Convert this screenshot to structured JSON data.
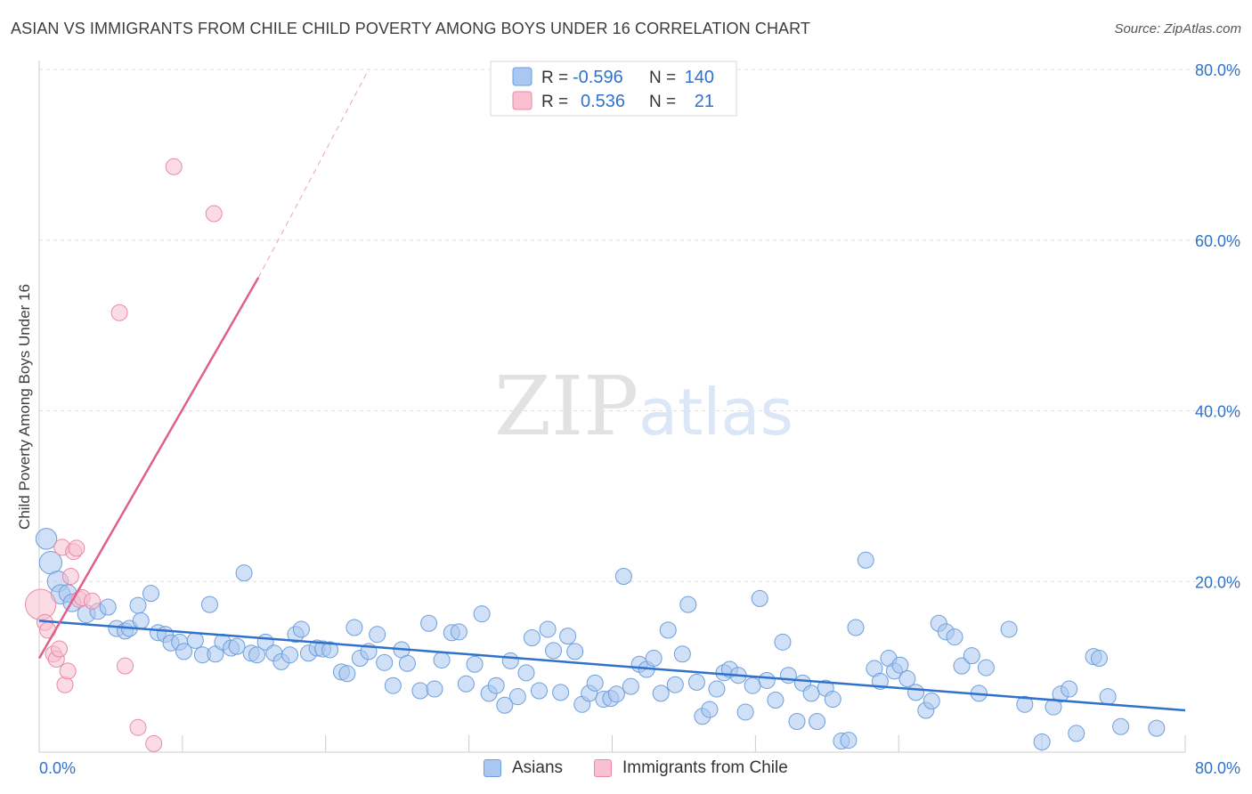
{
  "title": "ASIAN VS IMMIGRANTS FROM CHILE CHILD POVERTY AMONG BOYS UNDER 16 CORRELATION CHART",
  "source": "Source: ZipAtlas.com",
  "watermark": {
    "zip": "ZIP",
    "atlas": "atlas"
  },
  "colors": {
    "asian_fill": "#a9c7f0",
    "asian_stroke": "#6d9fdc",
    "asian_line": "#2e72cc",
    "chile_fill": "#f8c0d0",
    "chile_stroke": "#e88aa6",
    "chile_line": "#e0608a",
    "value_text": "#2e72cc",
    "grid": "#dddddd"
  },
  "legend_stats": [
    {
      "series": "Asians",
      "r_label": "R =",
      "r_value": "-0.596",
      "n_label": "N =",
      "n_value": "140"
    },
    {
      "series": "Immigrants from Chile",
      "r_label": "R =",
      "r_value": "0.536",
      "n_label": "N =",
      "n_value": "21"
    }
  ],
  "bottom_legend": [
    "Asians",
    "Immigrants from Chile"
  ],
  "chart_data": {
    "type": "scatter",
    "title": "ASIAN VS IMMIGRANTS FROM CHILE CHILD POVERTY AMONG BOYS UNDER 16 CORRELATION CHART",
    "xlabel": "",
    "ylabel": "Child Poverty Among Boys Under 16",
    "xlim": [
      0,
      80
    ],
    "ylim": [
      0,
      80
    ],
    "x_tick_labels": [
      "0.0%",
      "80.0%"
    ],
    "y_tick_labels": [
      "20.0%",
      "40.0%",
      "60.0%",
      "80.0%"
    ],
    "y_ticks": [
      20,
      40,
      60,
      80
    ],
    "grid": true,
    "series": [
      {
        "name": "Asians",
        "trendline": {
          "x": [
            0,
            80
          ],
          "y": [
            15.4,
            4.9
          ]
        },
        "points": [
          [
            0.5,
            25.0,
            1.3
          ],
          [
            0.8,
            22.2,
            1.4
          ],
          [
            1.3,
            20.0,
            1.3
          ],
          [
            1.5,
            18.5,
            1.2
          ],
          [
            2.0,
            18.6,
            1.1
          ],
          [
            2.3,
            17.5,
            1.1
          ],
          [
            3.3,
            16.2,
            1.1
          ],
          [
            4.1,
            16.5,
            1.0
          ],
          [
            4.8,
            17.0,
            1.0
          ],
          [
            5.4,
            14.5,
            1.0
          ],
          [
            6.0,
            14.2,
            1.0
          ],
          [
            6.3,
            14.5,
            1.0
          ],
          [
            6.9,
            17.2,
            1.0
          ],
          [
            7.1,
            15.4,
            1.0
          ],
          [
            7.8,
            18.6,
            1.0
          ],
          [
            8.3,
            14.0,
            1.0
          ],
          [
            8.8,
            13.8,
            1.0
          ],
          [
            9.2,
            12.8,
            1.0
          ],
          [
            9.8,
            12.9,
            1.0
          ],
          [
            10.1,
            11.8,
            1.0
          ],
          [
            10.9,
            13.1,
            1.0
          ],
          [
            11.4,
            11.4,
            1.0
          ],
          [
            11.9,
            17.3,
            1.0
          ],
          [
            12.3,
            11.5,
            1.0
          ],
          [
            12.8,
            12.9,
            1.0
          ],
          [
            13.4,
            12.2,
            1.0
          ],
          [
            13.8,
            12.4,
            1.0
          ],
          [
            14.3,
            21.0,
            1.0
          ],
          [
            14.8,
            11.6,
            1.0
          ],
          [
            15.2,
            11.4,
            1.0
          ],
          [
            15.8,
            12.9,
            1.0
          ],
          [
            16.4,
            11.6,
            1.0
          ],
          [
            16.9,
            10.6,
            1.0
          ],
          [
            17.5,
            11.4,
            1.0
          ],
          [
            17.9,
            13.8,
            1.0
          ],
          [
            18.3,
            14.4,
            1.0
          ],
          [
            18.8,
            11.6,
            1.0
          ],
          [
            19.4,
            12.2,
            1.0
          ],
          [
            19.8,
            12.1,
            1.0
          ],
          [
            20.3,
            12.0,
            1.0
          ],
          [
            21.1,
            9.4,
            1.0
          ],
          [
            21.5,
            9.2,
            1.0
          ],
          [
            22.0,
            14.6,
            1.0
          ],
          [
            22.4,
            11.0,
            1.0
          ],
          [
            23.0,
            11.8,
            1.0
          ],
          [
            23.6,
            13.8,
            1.0
          ],
          [
            24.1,
            10.5,
            1.0
          ],
          [
            24.7,
            7.8,
            1.0
          ],
          [
            25.3,
            12.0,
            1.0
          ],
          [
            25.7,
            10.4,
            1.0
          ],
          [
            26.6,
            7.2,
            1.0
          ],
          [
            27.2,
            15.1,
            1.0
          ],
          [
            27.6,
            7.4,
            1.0
          ],
          [
            28.1,
            10.8,
            1.0
          ],
          [
            28.8,
            14.0,
            1.0
          ],
          [
            29.3,
            14.1,
            1.0
          ],
          [
            29.8,
            8.0,
            1.0
          ],
          [
            30.4,
            10.3,
            1.0
          ],
          [
            30.9,
            16.2,
            1.0
          ],
          [
            31.4,
            6.9,
            1.0
          ],
          [
            31.9,
            7.8,
            1.0
          ],
          [
            32.5,
            5.5,
            1.0
          ],
          [
            32.9,
            10.7,
            1.0
          ],
          [
            33.4,
            6.5,
            1.0
          ],
          [
            34.0,
            9.3,
            1.0
          ],
          [
            34.4,
            13.4,
            1.0
          ],
          [
            34.9,
            7.2,
            1.0
          ],
          [
            35.5,
            14.4,
            1.0
          ],
          [
            35.9,
            11.9,
            1.0
          ],
          [
            36.4,
            7.0,
            1.0
          ],
          [
            36.9,
            13.6,
            1.0
          ],
          [
            37.4,
            11.8,
            1.0
          ],
          [
            37.9,
            5.6,
            1.0
          ],
          [
            38.4,
            6.9,
            1.0
          ],
          [
            38.8,
            8.1,
            1.0
          ],
          [
            39.4,
            6.2,
            1.0
          ],
          [
            39.9,
            6.3,
            1.0
          ],
          [
            40.3,
            6.8,
            1.0
          ],
          [
            40.8,
            20.6,
            1.0
          ],
          [
            41.3,
            7.7,
            1.0
          ],
          [
            41.9,
            10.3,
            1.0
          ],
          [
            42.4,
            9.7,
            1.0
          ],
          [
            42.9,
            11.0,
            1.0
          ],
          [
            43.4,
            6.9,
            1.0
          ],
          [
            43.9,
            14.3,
            1.0
          ],
          [
            44.4,
            7.9,
            1.0
          ],
          [
            44.9,
            11.5,
            1.0
          ],
          [
            45.3,
            17.3,
            1.0
          ],
          [
            45.9,
            8.2,
            1.0
          ],
          [
            46.3,
            4.2,
            1.0
          ],
          [
            46.8,
            5.0,
            1.0
          ],
          [
            47.3,
            7.4,
            1.0
          ],
          [
            47.8,
            9.3,
            1.0
          ],
          [
            48.2,
            9.7,
            1.0
          ],
          [
            48.8,
            9.0,
            1.0
          ],
          [
            49.3,
            4.7,
            1.0
          ],
          [
            49.8,
            7.8,
            1.0
          ],
          [
            50.3,
            18.0,
            1.0
          ],
          [
            50.8,
            8.4,
            1.0
          ],
          [
            51.4,
            6.1,
            1.0
          ],
          [
            51.9,
            12.9,
            1.0
          ],
          [
            52.3,
            9.0,
            1.0
          ],
          [
            52.9,
            3.6,
            1.0
          ],
          [
            53.3,
            8.1,
            1.0
          ],
          [
            53.9,
            6.9,
            1.0
          ],
          [
            54.3,
            3.6,
            1.0
          ],
          [
            54.9,
            7.5,
            1.0
          ],
          [
            55.4,
            6.2,
            1.0
          ],
          [
            56.0,
            1.3,
            1.0
          ],
          [
            56.5,
            1.4,
            1.0
          ],
          [
            57.0,
            14.6,
            1.0
          ],
          [
            57.7,
            22.5,
            1.0
          ],
          [
            58.3,
            9.8,
            1.0
          ],
          [
            58.7,
            8.3,
            1.0
          ],
          [
            59.3,
            11.0,
            1.0
          ],
          [
            59.7,
            9.5,
            1.0
          ],
          [
            60.1,
            10.2,
            1.0
          ],
          [
            60.6,
            8.6,
            1.0
          ],
          [
            61.2,
            7.0,
            1.0
          ],
          [
            61.9,
            4.9,
            1.0
          ],
          [
            62.3,
            6.0,
            1.0
          ],
          [
            62.8,
            15.1,
            1.0
          ],
          [
            63.3,
            14.1,
            1.0
          ],
          [
            63.9,
            13.5,
            1.0
          ],
          [
            64.4,
            10.1,
            1.0
          ],
          [
            65.1,
            11.3,
            1.0
          ],
          [
            65.6,
            6.9,
            1.0
          ],
          [
            66.1,
            9.9,
            1.0
          ],
          [
            67.7,
            14.4,
            1.0
          ],
          [
            68.8,
            5.6,
            1.0
          ],
          [
            70.0,
            1.2,
            1.0
          ],
          [
            70.8,
            5.3,
            1.0
          ],
          [
            71.3,
            6.8,
            1.0
          ],
          [
            71.9,
            7.4,
            1.0
          ],
          [
            72.4,
            2.2,
            1.0
          ],
          [
            73.6,
            11.2,
            1.0
          ],
          [
            74.0,
            11.0,
            1.0
          ],
          [
            74.6,
            6.5,
            1.0
          ],
          [
            75.5,
            3.0,
            1.0
          ],
          [
            78.0,
            2.8,
            1.0
          ]
        ]
      },
      {
        "name": "Immigrants from Chile",
        "trendline": {
          "x": [
            0,
            15.3
          ],
          "y": [
            11.0,
            55.6
          ],
          "dashed_x": [
            15.3,
            23.0
          ],
          "dashed_y": [
            55.6,
            80.0
          ]
        },
        "points": [
          [
            0.1,
            17.3,
            1.9
          ],
          [
            0.4,
            15.2,
            1.0
          ],
          [
            0.6,
            14.3,
            1.0
          ],
          [
            1.0,
            11.5,
            1.0
          ],
          [
            1.2,
            10.9,
            1.0
          ],
          [
            1.4,
            12.1,
            1.0
          ],
          [
            1.6,
            24.0,
            1.0
          ],
          [
            1.8,
            7.9,
            1.0
          ],
          [
            2.0,
            9.5,
            1.0
          ],
          [
            2.2,
            20.6,
            1.0
          ],
          [
            2.4,
            23.5,
            1.0
          ],
          [
            2.6,
            23.9,
            1.0
          ],
          [
            2.8,
            17.9,
            1.0
          ],
          [
            3.0,
            18.1,
            1.0
          ],
          [
            3.7,
            17.7,
            1.0
          ],
          [
            5.6,
            51.5,
            1.0
          ],
          [
            6.0,
            10.1,
            1.0
          ],
          [
            6.9,
            2.9,
            1.0
          ],
          [
            8.0,
            1.0,
            1.0
          ],
          [
            9.4,
            68.6,
            1.0
          ],
          [
            12.2,
            63.1,
            1.0
          ]
        ]
      }
    ]
  }
}
